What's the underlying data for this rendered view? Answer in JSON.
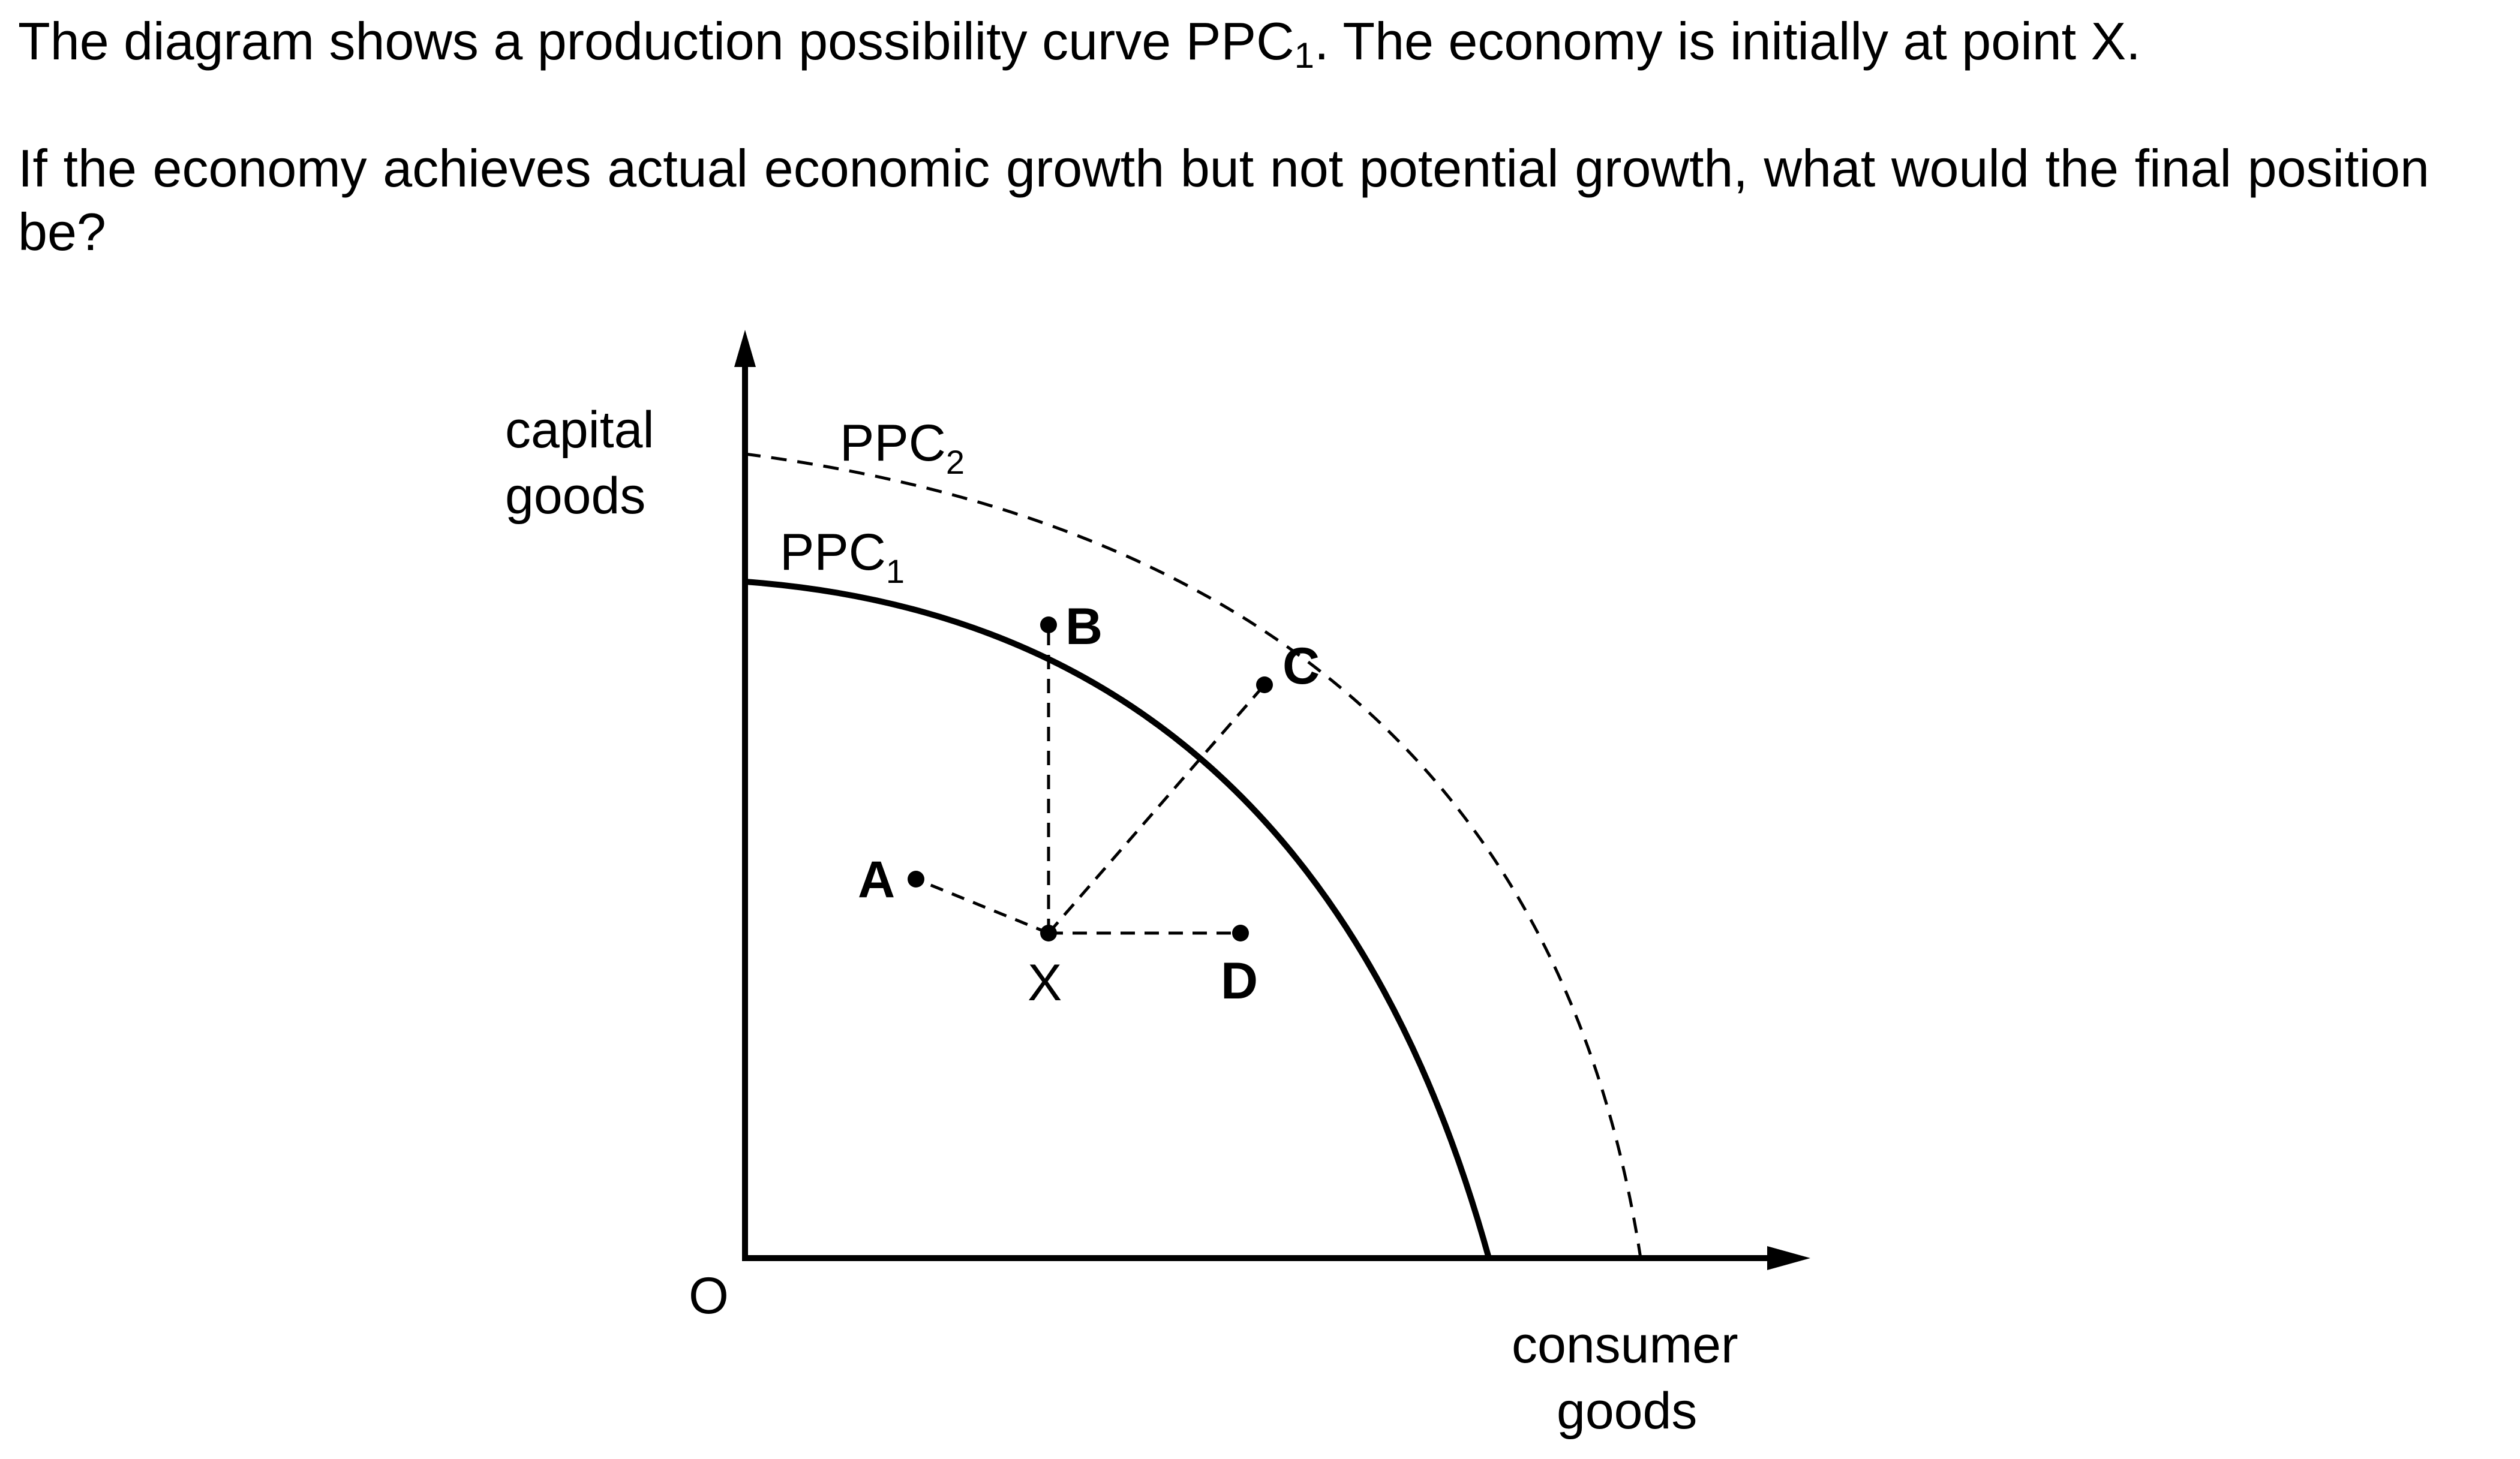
{
  "question": {
    "line1_before": "The diagram shows a production possibility curve PPC",
    "line1_sub": "1",
    "line1_after": ". The economy is initially at point X.",
    "line2": "If the economy achieves actual economic growth but not potential growth, what would the final position be?"
  },
  "diagram": {
    "y_axis_label_line1": "capital",
    "y_axis_label_line2": "goods",
    "x_axis_label_line1": "consumer",
    "x_axis_label_line2": "goods",
    "origin_label": "O",
    "curves": [
      {
        "base": "PPC",
        "sub": "1"
      },
      {
        "base": "PPC",
        "sub": "2"
      }
    ],
    "points": {
      "A": "A",
      "B": "B",
      "C": "C",
      "D": "D",
      "X": "X"
    }
  }
}
